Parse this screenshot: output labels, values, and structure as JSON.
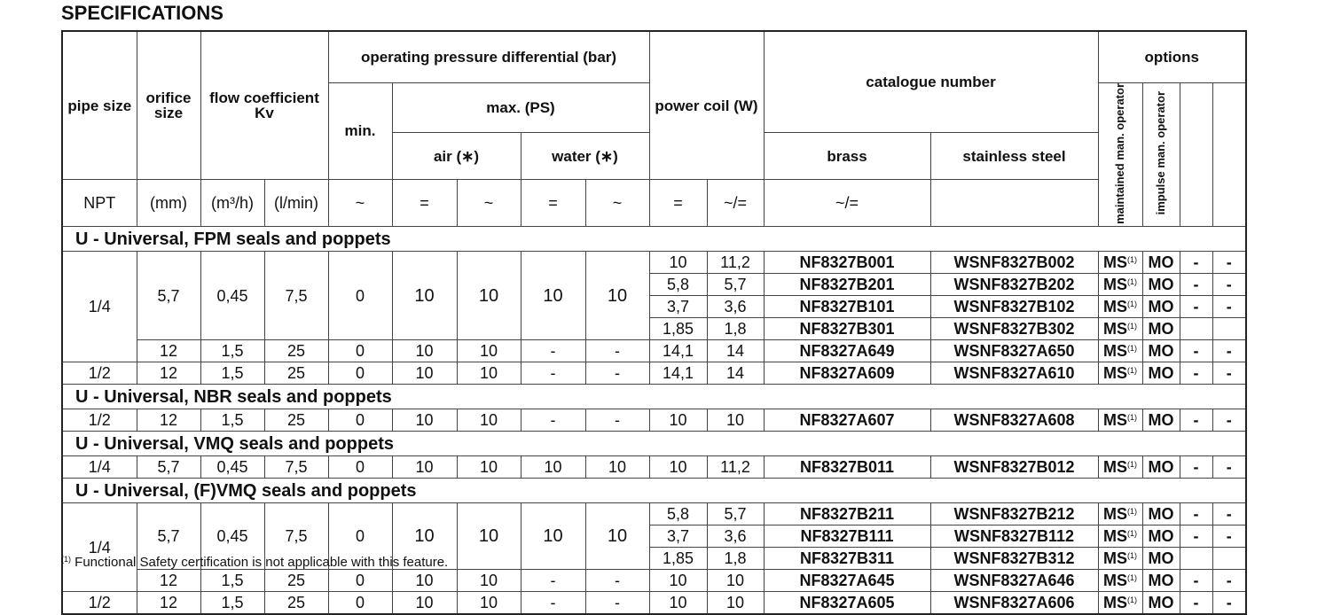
{
  "title": "SPECIFICATIONS",
  "header": {
    "pipe_size": "pipe size",
    "orifice_size": "orifice size",
    "flow_coefficient": "flow coefficient Kv",
    "operating_pressure": "operating pressure differential (bar)",
    "min": "min.",
    "max_ps": "max. (PS)",
    "air": "air (∗)",
    "water": "water (∗)",
    "power_coil": "power coil (W)",
    "catalogue_number": "catalogue number",
    "brass": "brass",
    "stainless_steel": "stainless steel",
    "options": "options",
    "opt_maintained": "maintained man. operator",
    "opt_impulse": "impulse man. operator",
    "units": [
      "NPT",
      "(mm)",
      "(m³/h)",
      "(l/min)",
      "~",
      "=",
      "~",
      "=",
      "~",
      "=",
      "~/=",
      "~/="
    ]
  },
  "sections": [
    {
      "title": "U - Universal, FPM seals and poppets",
      "rows": [
        [
          "1/4",
          "5,7",
          "0,45",
          "7,5",
          "0",
          "10",
          "10",
          "10",
          "10",
          "10",
          "11,2",
          "NF8327B001",
          "WSNF8327B002",
          "MS",
          "MO",
          "-",
          "-"
        ],
        [
          "1/4",
          "5,7",
          "0,45",
          "7,5",
          "0",
          "10",
          "10",
          "10",
          "10",
          "5,8",
          "5,7",
          "NF8327B201",
          "WSNF8327B202",
          "MS",
          "MO",
          "-",
          "-"
        ],
        [
          "1/4",
          "5,7",
          "0,45",
          "7,5",
          "0",
          "10",
          "10",
          "10",
          "10",
          "3,7",
          "3,6",
          "NF8327B101",
          "WSNF8327B102",
          "MS",
          "MO",
          "-",
          "-"
        ],
        [
          "1/4",
          "5,7",
          "0,45",
          "7,5",
          "0",
          "10",
          "10",
          "10",
          "10",
          "1,85",
          "1,8",
          "NF8327B301",
          "WSNF8327B302",
          "MS",
          "MO",
          "",
          ""
        ],
        [
          "1/4",
          "12",
          "1,5",
          "25",
          "0",
          "10",
          "10",
          "-",
          "-",
          "14,1",
          "14",
          "NF8327A649",
          "WSNF8327A650",
          "MS",
          "MO",
          "-",
          "-"
        ],
        [
          "1/2",
          "12",
          "1,5",
          "25",
          "0",
          "10",
          "10",
          "-",
          "-",
          "14,1",
          "14",
          "NF8327A609",
          "WSNF8327A610",
          "MS",
          "MO",
          "-",
          "-"
        ]
      ]
    },
    {
      "title": "U - Universal, NBR seals and poppets",
      "rows": [
        [
          "1/2",
          "12",
          "1,5",
          "25",
          "0",
          "10",
          "10",
          "-",
          "-",
          "10",
          "10",
          "NF8327A607",
          "WSNF8327A608",
          "MS",
          "MO",
          "-",
          "-"
        ]
      ]
    },
    {
      "title": "U - Universal, VMQ seals and poppets",
      "rows": [
        [
          "1/4",
          "5,7",
          "0,45",
          "7,5",
          "0",
          "10",
          "10",
          "10",
          "10",
          "10",
          "11,2",
          "NF8327B011",
          "WSNF8327B012",
          "MS",
          "MO",
          "-",
          "-"
        ]
      ]
    },
    {
      "title": "U - Universal, (F)VMQ seals and poppets",
      "rows": [
        [
          "1/4",
          "5,7",
          "0,45",
          "7,5",
          "0",
          "10",
          "10",
          "10",
          "10",
          "5,8",
          "5,7",
          "NF8327B211",
          "WSNF8327B212",
          "MS",
          "MO",
          "-",
          "-"
        ],
        [
          "1/4",
          "5,7",
          "0,45",
          "7,5",
          "0",
          "10",
          "10",
          "10",
          "10",
          "3,7",
          "3,6",
          "NF8327B111",
          "WSNF8327B112",
          "MS",
          "MO",
          "-",
          "-"
        ],
        [
          "1/4",
          "5,7",
          "0,45",
          "7,5",
          "0",
          "10",
          "10",
          "10",
          "10",
          "1,85",
          "1,8",
          "NF8327B311",
          "WSNF8327B312",
          "MS",
          "MO",
          "",
          ""
        ],
        [
          "1/4",
          "12",
          "1,5",
          "25",
          "0",
          "10",
          "10",
          "-",
          "-",
          "10",
          "10",
          "NF8327A645",
          "WSNF8327A646",
          "MS",
          "MO",
          "-",
          "-"
        ],
        [
          "1/2",
          "12",
          "1,5",
          "25",
          "0",
          "10",
          "10",
          "-",
          "-",
          "10",
          "10",
          "NF8327A605",
          "WSNF8327A606",
          "MS",
          "MO",
          "-",
          "-"
        ]
      ]
    }
  ],
  "footnote_mark": "(1)",
  "footnote": "Functional Safety certification is not applicable with this feature."
}
